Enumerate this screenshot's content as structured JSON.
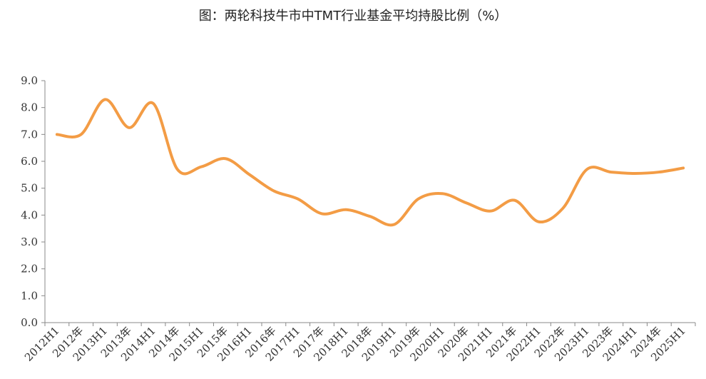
{
  "chart_data": {
    "type": "line",
    "title": "图：两轮科技牛市中TMT行业基金平均持股比例（%）",
    "xlabel": "",
    "ylabel": "",
    "ylim": [
      0,
      9
    ],
    "yticks": [
      "0.0",
      "1.0",
      "2.0",
      "3.0",
      "4.0",
      "5.0",
      "6.0",
      "7.0",
      "8.0",
      "9.0"
    ],
    "grid": false,
    "categories": [
      "2012H1",
      "2012年",
      "2013H1",
      "2013年",
      "2014H1",
      "2014年",
      "2015H1",
      "2015年",
      "2016H1",
      "2016年",
      "2017H1",
      "2017年",
      "2018H1",
      "2018年",
      "2019H1",
      "2019年",
      "2020H1",
      "2020年",
      "2021H1",
      "2021年",
      "2022H1",
      "2022年",
      "2023H1",
      "2023年",
      "2024H1",
      "2024年",
      "2025H1"
    ],
    "series": [
      {
        "color": "#F39C45",
        "values": [
          7.0,
          7.0,
          8.3,
          7.25,
          8.15,
          5.7,
          5.8,
          6.1,
          5.5,
          4.9,
          4.6,
          4.05,
          4.2,
          3.95,
          3.65,
          4.6,
          4.8,
          4.45,
          4.15,
          4.55,
          3.75,
          4.25,
          5.7,
          5.6,
          5.55,
          5.6,
          5.75
        ]
      }
    ]
  }
}
